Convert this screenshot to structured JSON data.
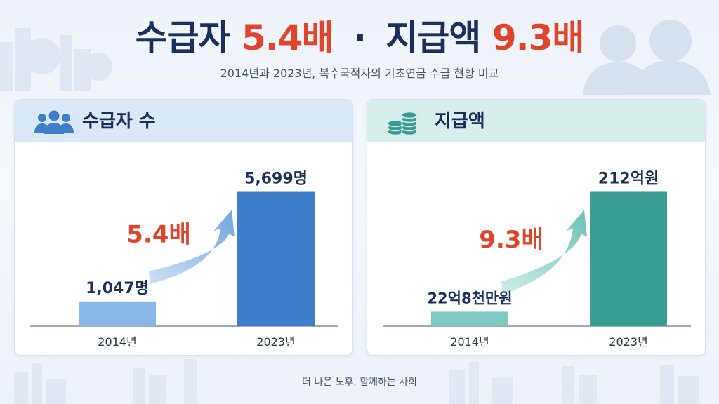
{
  "title": {
    "part1": "수급자",
    "part2": "5.4배",
    "sep": "·",
    "part3": "지급액",
    "part4": "9.3배"
  },
  "subtitle": "2014년과 2023년, 복수국적자의 기초연금 수급 현황 비교",
  "footer": "더 나은 노후, 함께하는 사회",
  "colors": {
    "accent_red": "#e0452c",
    "navy": "#1c2f5c",
    "blue_light": "#8ab8e6",
    "blue_dark": "#3f7ecb",
    "teal_light": "#7fcac0",
    "teal_dark": "#3a9d91"
  },
  "panels": {
    "left": {
      "label": "수급자 수",
      "icon": "people-icon"
    },
    "right": {
      "label": "지급액",
      "icon": "coins-icon"
    }
  },
  "chart_data": [
    {
      "type": "bar",
      "categories": [
        "2014년",
        "2023년"
      ],
      "values": [
        1047,
        5699
      ],
      "value_labels": [
        "1,047명",
        "5,699명"
      ],
      "annotation": "5.4배",
      "ylim": [
        0,
        6400
      ]
    },
    {
      "type": "bar",
      "categories": [
        "2014년",
        "2023년"
      ],
      "values": [
        22.8,
        212
      ],
      "value_labels": [
        "22억8천만원",
        "212억원"
      ],
      "annotation": "9.3배",
      "ylim": [
        0,
        238
      ]
    }
  ]
}
